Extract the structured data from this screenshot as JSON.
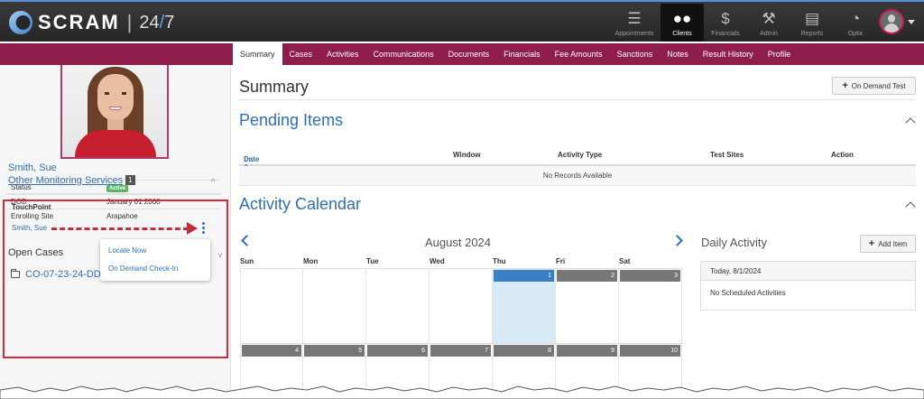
{
  "brand": {
    "name": "SCRAM",
    "sep": "|",
    "num1": "24",
    "slash": "/",
    "num2": "7"
  },
  "nav": [
    {
      "label": "Appointments",
      "icon": "list-icon"
    },
    {
      "label": "Clients",
      "icon": "users-icon",
      "active": true
    },
    {
      "label": "Financials",
      "icon": "dollar-icon"
    },
    {
      "label": "Admin",
      "icon": "wrench-icon"
    },
    {
      "label": "Reports",
      "icon": "document-icon"
    },
    {
      "label": "Optix",
      "icon": "dashboard-icon"
    }
  ],
  "tabs": [
    "Summary",
    "Cases",
    "Activities",
    "Communications",
    "Documents",
    "Financials",
    "Fee Amounts",
    "Sanctions",
    "Notes",
    "Result History",
    "Profile"
  ],
  "client": {
    "name": "Smith, Sue",
    "fields": [
      {
        "k": "Status",
        "v": "Active"
      },
      {
        "k": "DOB",
        "v": "January 01 2000"
      },
      {
        "k": "Enrolling Site",
        "v": "Arapahoe"
      }
    ]
  },
  "oms": {
    "label": "Other Monitoring Services",
    "count": "1"
  },
  "touchpoint": {
    "label": "TouchPoint",
    "client": "Smith, Sue",
    "menu": [
      "Locate Now",
      "On Demand Check-In"
    ]
  },
  "open_cases": {
    "label": "Open Cases",
    "case": "CO-07-23-24-DD"
  },
  "summary": {
    "title": "Summary",
    "on_demand_btn": "On Demand Test"
  },
  "pending": {
    "title": "Pending Items",
    "columns": [
      "Date & Time",
      "Window",
      "Activity Type",
      "Test Sites",
      "Action"
    ],
    "empty": "No Records Available"
  },
  "calendar": {
    "title": "Activity Calendar",
    "month": "August 2024",
    "dows": [
      "Sun",
      "Mon",
      "Tue",
      "Wed",
      "Thu",
      "Fri",
      "Sat"
    ],
    "week1": [
      "",
      "",
      "",
      "",
      "1",
      "2",
      "3"
    ],
    "week2": [
      "4",
      "5",
      "6",
      "7",
      "8",
      "9",
      "10"
    ]
  },
  "daily": {
    "title": "Daily Activity",
    "add_btn": "Add Item",
    "date": "Today, 8/1/2024",
    "empty": "No Scheduled Activities"
  },
  "colors": {
    "topbar": "#2e2e2e",
    "tabstrip": "#8f1d4b",
    "link": "#2f6fb5",
    "highlight": "#d42b3b",
    "today": "#3a7fc4"
  }
}
